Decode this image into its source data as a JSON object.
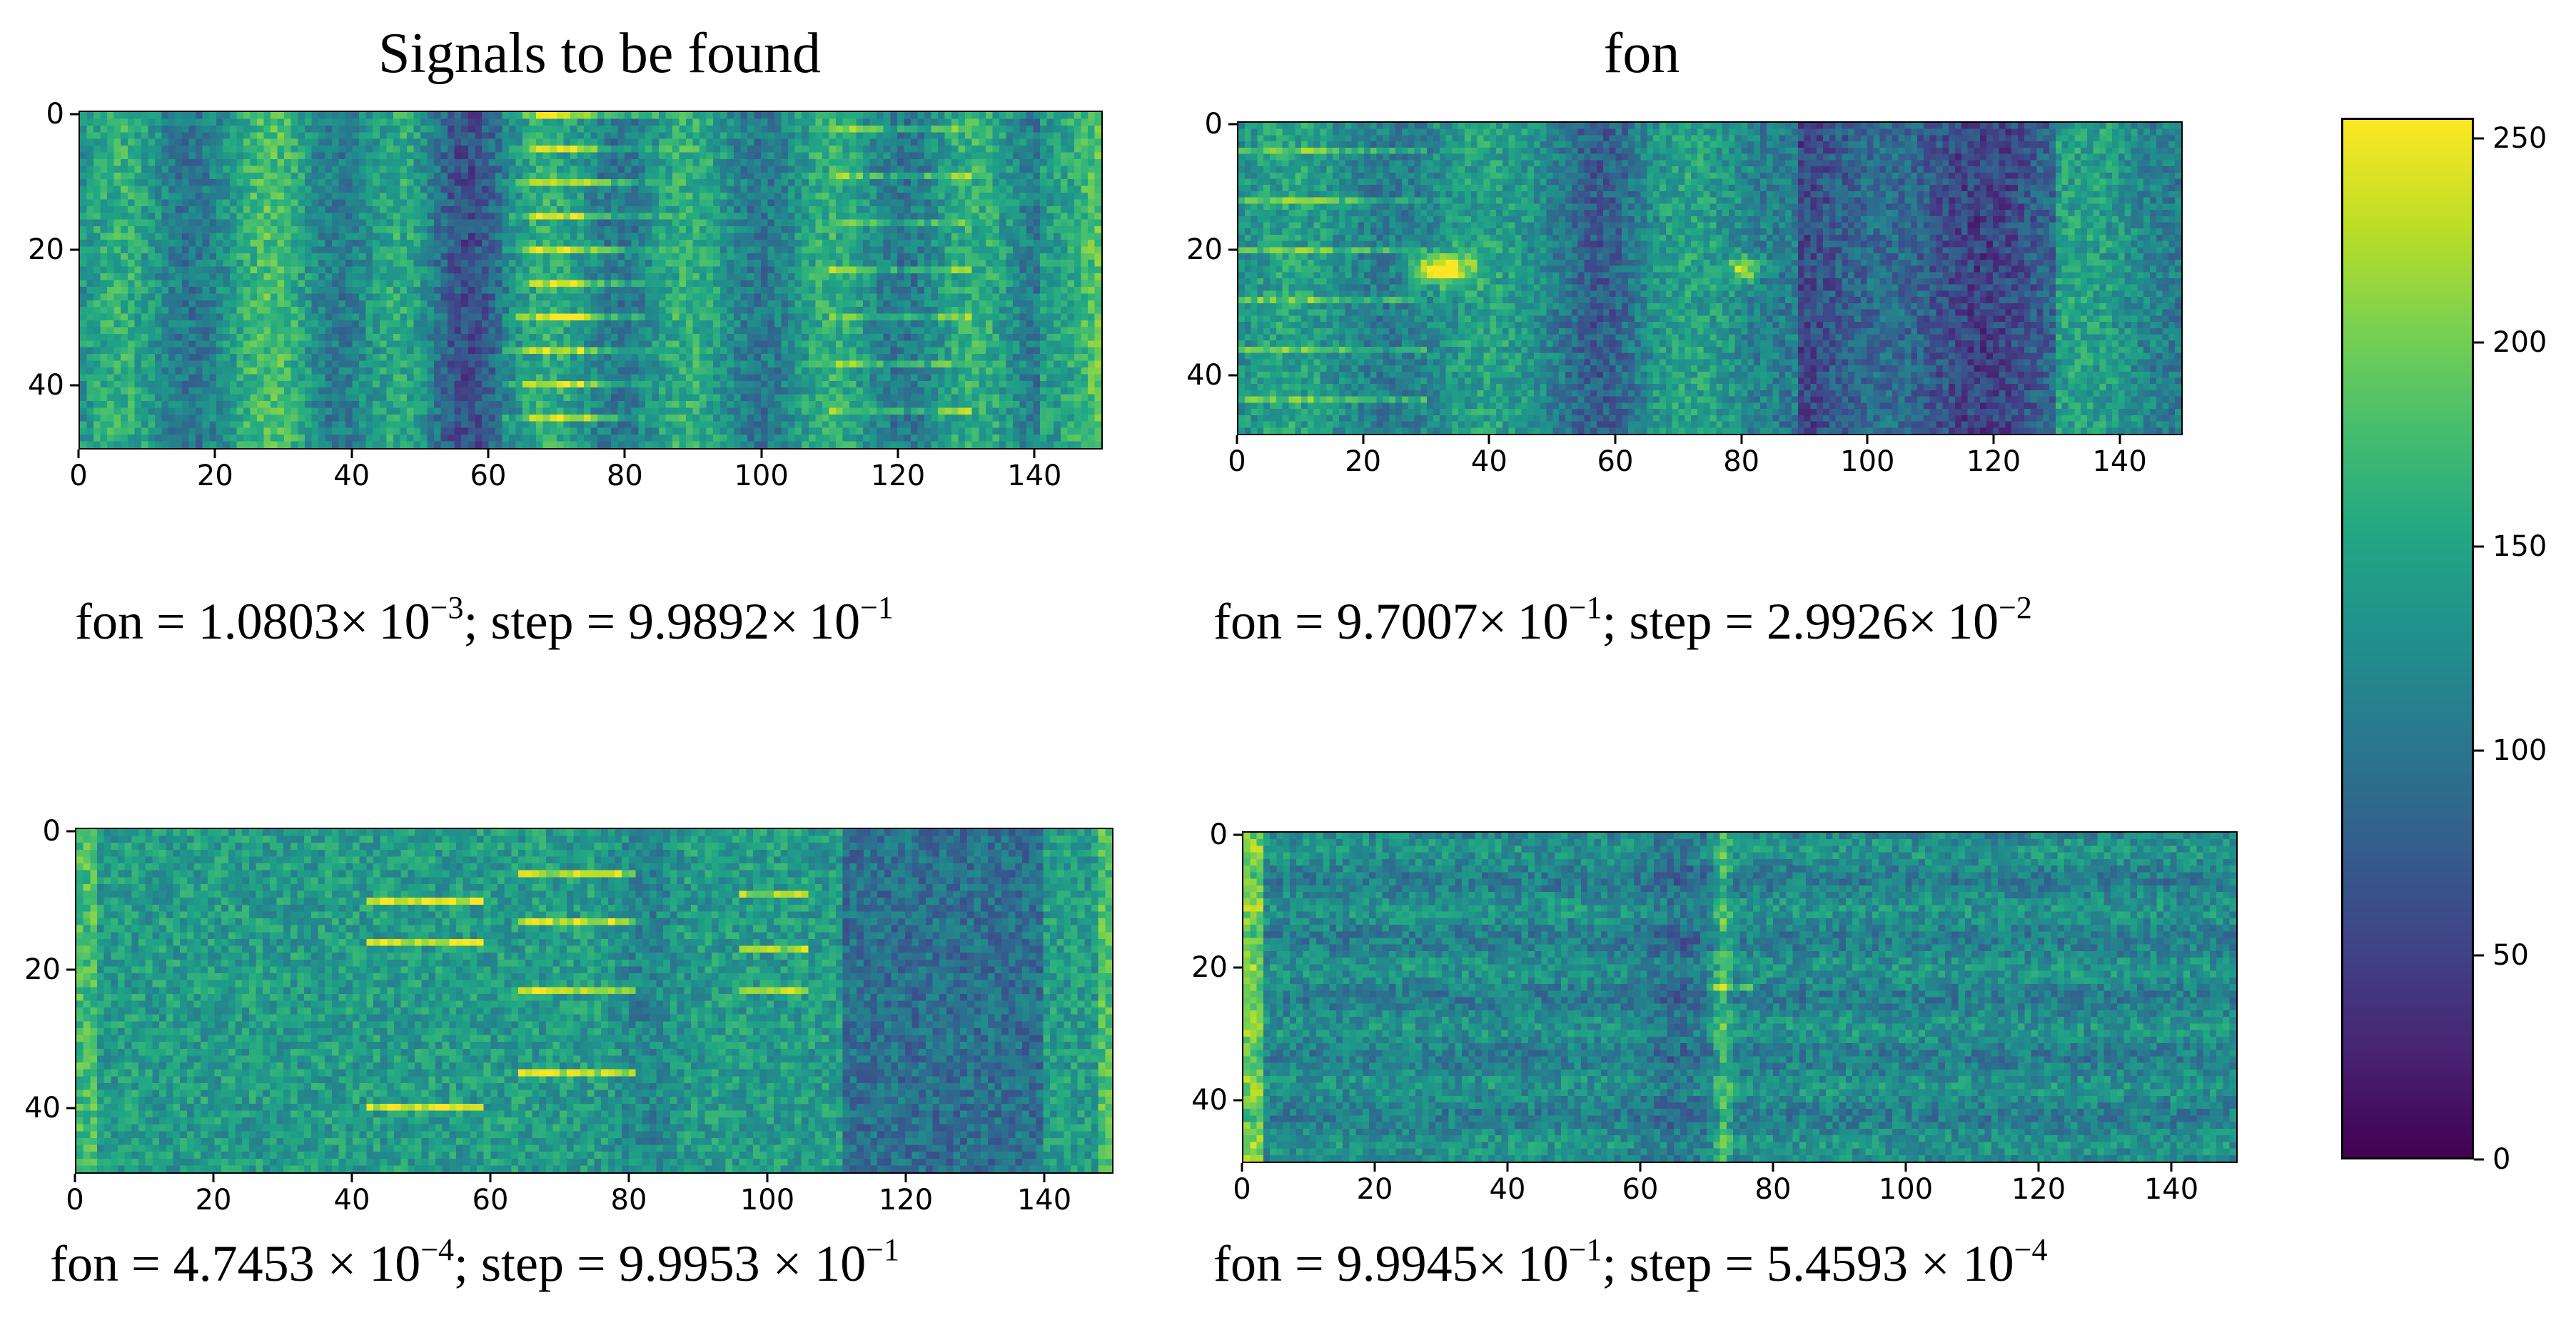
{
  "titles": {
    "left": "Signals to be found",
    "right": "fon"
  },
  "chart_data": [
    {
      "type": "heatmap",
      "id": "signals-top",
      "x_ticks": [
        "0",
        "20",
        "40",
        "60",
        "80",
        "100",
        "120",
        "140"
      ],
      "y_ticks": [
        "0",
        "20",
        "40"
      ],
      "xlim": [
        0,
        150
      ],
      "ylim": [
        0,
        50
      ],
      "bright_stripes_x": [
        62,
        66,
        74,
        80
      ],
      "caption": {
        "fon_mantissa": "1.0803",
        "fon_exp": "−3",
        "step_mantissa": "9.9892",
        "step_exp": "−1",
        "style": "tight"
      }
    },
    {
      "type": "heatmap",
      "id": "fon-top",
      "x_ticks": [
        "0",
        "20",
        "40",
        "60",
        "80",
        "100",
        "120",
        "140"
      ],
      "y_ticks": [
        "0",
        "20",
        "40"
      ],
      "xlim": [
        0,
        150
      ],
      "ylim": [
        0,
        50
      ],
      "bright_spots": [
        [
          32,
          23
        ],
        [
          80,
          23
        ]
      ],
      "caption": {
        "fon_mantissa": "9.7007",
        "fon_exp": "−1",
        "step_mantissa": "2.9926",
        "step_exp": "−2",
        "style": "tight"
      }
    },
    {
      "type": "heatmap",
      "id": "signals-bottom",
      "x_ticks": [
        "0",
        "20",
        "40",
        "60",
        "80",
        "100",
        "120",
        "140"
      ],
      "y_ticks": [
        "0",
        "20",
        "40"
      ],
      "xlim": [
        0,
        150
      ],
      "ylim": [
        0,
        50
      ],
      "bright_stripes_x": [
        50,
        72,
        100
      ],
      "caption": {
        "fon_mantissa": "4.7453",
        "fon_exp": "−4",
        "step_mantissa": "9.9953",
        "step_exp": "−1",
        "style": "spaced"
      }
    },
    {
      "type": "heatmap",
      "id": "fon-bottom",
      "x_ticks": [
        "0",
        "20",
        "40",
        "60",
        "80",
        "100",
        "120",
        "140"
      ],
      "y_ticks": [
        "0",
        "20",
        "40"
      ],
      "xlim": [
        0,
        150
      ],
      "ylim": [
        0,
        50
      ],
      "bright_stripes_x": [
        72
      ],
      "caption": {
        "fon_mantissa": "9.9945",
        "fon_exp": "−1",
        "step_mantissa": "5.4593",
        "step_exp": "−4",
        "style": "mixed"
      }
    }
  ],
  "colorbar": {
    "colormap": "viridis",
    "range": [
      0,
      255
    ],
    "ticks": [
      "0",
      "50",
      "100",
      "150",
      "200",
      "250"
    ],
    "tick_values": [
      0,
      50,
      100,
      150,
      200,
      250
    ]
  }
}
